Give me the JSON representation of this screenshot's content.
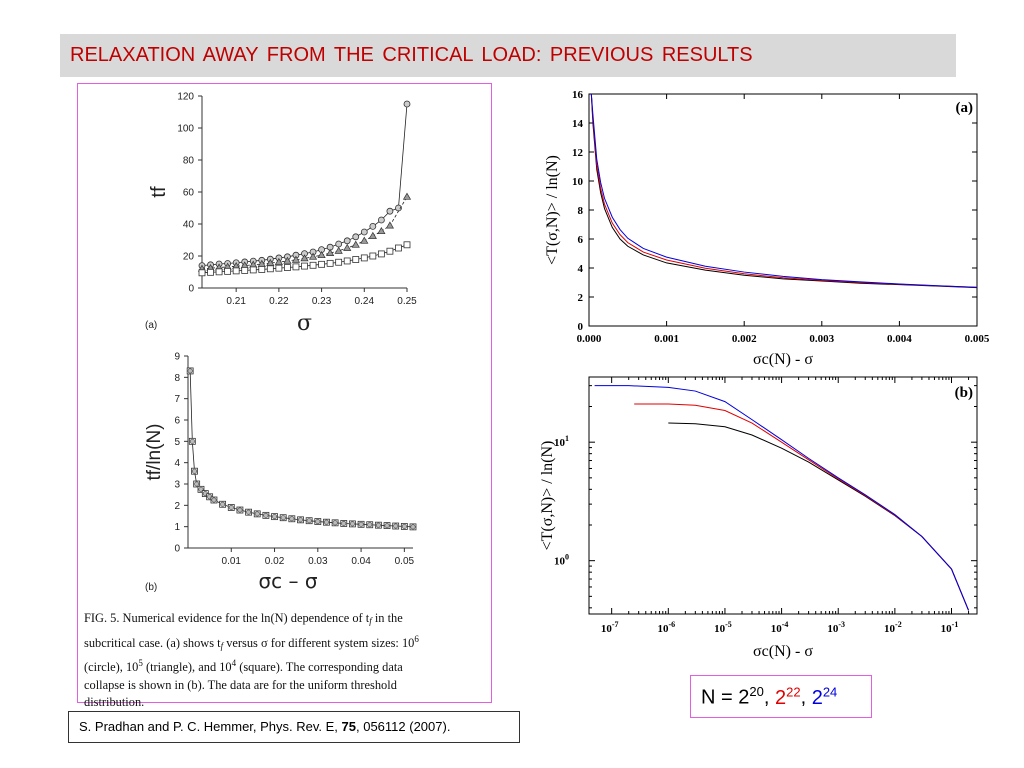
{
  "slide": {
    "title": "RELAXATION  AWAY  FROM  THE  CRITICAL  LOAD:  PREVIOUS  RESULTS",
    "legend": {
      "prefix": "N = ",
      "b1": "2",
      "e1": "20",
      "sep1": ", ",
      "b2": "2",
      "e2": "22",
      "sep2": ", ",
      "b3": "2",
      "e3": "24"
    },
    "reference": {
      "text1": "S. Pradhan and P. C. Hemmer, Phys. Rev. E, ",
      "volume": "75",
      "text2": ", 056112 (2007)."
    },
    "caption": {
      "l1": "FIG. 5. Numerical evidence for the ln(N) dependence of t",
      "l1sub": "f",
      "l1end": " in the",
      "l2": "subcritical case. (a) shows t",
      "l2sub": "f",
      "l2mid": " versus σ for different system sizes: 10",
      "l2sup": "6",
      "l3": "(circle), 10",
      "l3sup1": "5",
      "l3mid": " (triangle), and 10",
      "l3sup2": "4",
      "l3end": " (square). The corresponding data",
      "l4": "collapse is shown in (b). The data are for the uniform threshold",
      "l5": "distribution."
    },
    "colors": {
      "title": "#c00000",
      "black": "#000000",
      "red": "#e00000",
      "blue": "#0000e0",
      "frame": "#e060e0"
    }
  },
  "chart_data": [
    {
      "id": "left-a",
      "type": "scatter",
      "panel_label": "(a)",
      "xlabel": "σ",
      "ylabel": "t_f",
      "xlim": [
        0.202,
        0.25
      ],
      "ylim": [
        0,
        120
      ],
      "xticks": [
        0.21,
        0.22,
        0.23,
        0.24,
        0.25
      ],
      "yticks": [
        0,
        20,
        40,
        60,
        80,
        100,
        120
      ],
      "series": [
        {
          "name": "10^6",
          "marker": "circle",
          "x": [
            0.202,
            0.204,
            0.206,
            0.208,
            0.21,
            0.212,
            0.214,
            0.216,
            0.218,
            0.22,
            0.222,
            0.224,
            0.226,
            0.228,
            0.23,
            0.232,
            0.234,
            0.236,
            0.238,
            0.24,
            0.242,
            0.244,
            0.246,
            0.248,
            0.25
          ],
          "y": [
            14,
            14.5,
            15,
            15.3,
            15.8,
            16.3,
            16.8,
            17.3,
            18,
            18.8,
            19.5,
            20.5,
            21.5,
            22.5,
            24,
            25.5,
            27.5,
            29.5,
            32,
            35,
            38.5,
            42.5,
            48,
            50,
            115
          ]
        },
        {
          "name": "10^5",
          "marker": "triangle",
          "x": [
            0.202,
            0.204,
            0.206,
            0.208,
            0.21,
            0.212,
            0.214,
            0.216,
            0.218,
            0.22,
            0.222,
            0.224,
            0.226,
            0.228,
            0.23,
            0.232,
            0.234,
            0.236,
            0.238,
            0.24,
            0.242,
            0.244,
            0.246,
            0.25
          ],
          "y": [
            12,
            12.4,
            12.8,
            13.2,
            13.6,
            14,
            14.5,
            15,
            15.6,
            16.2,
            16.9,
            17.6,
            18.5,
            19.5,
            20.5,
            21.8,
            23.2,
            25,
            27,
            29.5,
            32.5,
            35.5,
            39,
            57
          ]
        },
        {
          "name": "10^4",
          "marker": "square",
          "x": [
            0.202,
            0.204,
            0.206,
            0.208,
            0.21,
            0.212,
            0.214,
            0.216,
            0.218,
            0.22,
            0.222,
            0.224,
            0.226,
            0.228,
            0.23,
            0.232,
            0.234,
            0.236,
            0.238,
            0.24,
            0.242,
            0.244,
            0.246,
            0.248,
            0.25
          ],
          "y": [
            9.5,
            9.8,
            10.1,
            10.4,
            10.7,
            11,
            11.3,
            11.6,
            12,
            12.4,
            12.8,
            13.2,
            13.7,
            14.2,
            14.8,
            15.4,
            16.1,
            16.9,
            17.8,
            18.8,
            20,
            21.3,
            23,
            25,
            27
          ]
        }
      ]
    },
    {
      "id": "left-b",
      "type": "scatter",
      "panel_label": "(b)",
      "xlabel": "σc – σ",
      "ylabel": "tf/ln(N)",
      "xlim": [
        0,
        0.052
      ],
      "ylim": [
        0,
        9
      ],
      "xticks": [
        0.01,
        0.02,
        0.03,
        0.04,
        0.05
      ],
      "yticks": [
        0,
        1,
        2,
        3,
        4,
        5,
        6,
        7,
        8,
        9
      ],
      "series": [
        {
          "name": "collapse",
          "x": [
            0.0005,
            0.001,
            0.0015,
            0.002,
            0.003,
            0.004,
            0.005,
            0.006,
            0.008,
            0.01,
            0.012,
            0.014,
            0.016,
            0.018,
            0.02,
            0.022,
            0.024,
            0.026,
            0.028,
            0.03,
            0.032,
            0.034,
            0.036,
            0.038,
            0.04,
            0.042,
            0.044,
            0.046,
            0.048,
            0.05,
            0.052
          ],
          "y": [
            8.3,
            5,
            3.6,
            3.0,
            2.75,
            2.55,
            2.4,
            2.25,
            2.05,
            1.9,
            1.78,
            1.68,
            1.6,
            1.53,
            1.47,
            1.42,
            1.37,
            1.32,
            1.28,
            1.24,
            1.21,
            1.18,
            1.15,
            1.13,
            1.11,
            1.09,
            1.07,
            1.05,
            1.03,
            1.01,
            0.99
          ]
        }
      ]
    },
    {
      "id": "right-a",
      "type": "line",
      "panel_label": "(a)",
      "xlabel": "σc(N) - σ",
      "ylabel": "<T(σ,N)> / ln(N)",
      "xlim": [
        0,
        0.005
      ],
      "ylim": [
        0,
        16
      ],
      "xticks": [
        "0.000",
        "0.001",
        "0.002",
        "0.003",
        "0.004",
        "0.005"
      ],
      "yticks": [
        "0",
        "2",
        "4",
        "6",
        "8",
        "10",
        "12",
        "14",
        "16"
      ],
      "x": [
        3e-05,
        5e-05,
        0.0001,
        0.00015,
        0.0002,
        0.0003,
        0.0004,
        0.0005,
        0.0007,
        0.001,
        0.0015,
        0.002,
        0.0025,
        0.003,
        0.0035,
        0.004,
        0.0045,
        0.005
      ],
      "series": [
        {
          "name": "2^20",
          "color": "#000000",
          "values": [
            16,
            14,
            10.8,
            9.2,
            8.1,
            6.8,
            6.0,
            5.5,
            4.9,
            4.35,
            3.85,
            3.5,
            3.25,
            3.1,
            2.95,
            2.85,
            2.75,
            2.65
          ]
        },
        {
          "name": "2^22",
          "color": "#e00000",
          "values": [
            16,
            14.3,
            11.1,
            9.5,
            8.4,
            7.1,
            6.3,
            5.75,
            5.1,
            4.55,
            3.98,
            3.6,
            3.33,
            3.15,
            3.0,
            2.88,
            2.77,
            2.67
          ]
        },
        {
          "name": "2^24",
          "color": "#0000e0",
          "values": [
            16,
            14.6,
            11.5,
            9.9,
            8.8,
            7.5,
            6.65,
            6.05,
            5.35,
            4.75,
            4.12,
            3.72,
            3.42,
            3.2,
            3.04,
            2.9,
            2.78,
            2.66
          ]
        }
      ]
    },
    {
      "id": "right-b",
      "type": "line",
      "panel_label": "(b)",
      "scale": "log-log",
      "xlabel": "σc(N) - σ",
      "ylabel": "<T(σ,N)> / ln(N)",
      "xticks": [
        "10-7",
        "10-6",
        "10-5",
        "10-4",
        "10-3",
        "10-2",
        "10-1"
      ],
      "yticks": [
        "100",
        "101"
      ],
      "series": [
        {
          "name": "2^20",
          "color": "#000000",
          "x": [
            1e-06,
            3e-06,
            1e-05,
            3e-05,
            0.0001,
            0.0003,
            0.001,
            0.003,
            0.01,
            0.03,
            0.1,
            0.2
          ],
          "values": [
            14.5,
            14.3,
            13.5,
            11.5,
            8.9,
            6.8,
            4.8,
            3.5,
            2.4,
            1.6,
            0.85,
            0.38
          ]
        },
        {
          "name": "2^22",
          "color": "#e00000",
          "x": [
            2.5e-07,
            1e-06,
            3e-06,
            1e-05,
            3e-05,
            0.0001,
            0.0003,
            0.001,
            0.003,
            0.01,
            0.03,
            0.1,
            0.2
          ],
          "values": [
            21,
            21,
            20.5,
            18.5,
            14.5,
            10,
            7.1,
            4.9,
            3.55,
            2.42,
            1.6,
            0.85,
            0.38
          ]
        },
        {
          "name": "2^24",
          "color": "#0000e0",
          "x": [
            5e-08,
            2e-07,
            1e-06,
            3e-06,
            1e-05,
            3e-05,
            0.0001,
            0.0003,
            0.001,
            0.003,
            0.01,
            0.03,
            0.1,
            0.2
          ],
          "values": [
            30,
            30,
            29,
            27,
            22,
            15.5,
            10.5,
            7.3,
            5.0,
            3.6,
            2.45,
            1.6,
            0.85,
            0.38
          ]
        }
      ]
    }
  ]
}
